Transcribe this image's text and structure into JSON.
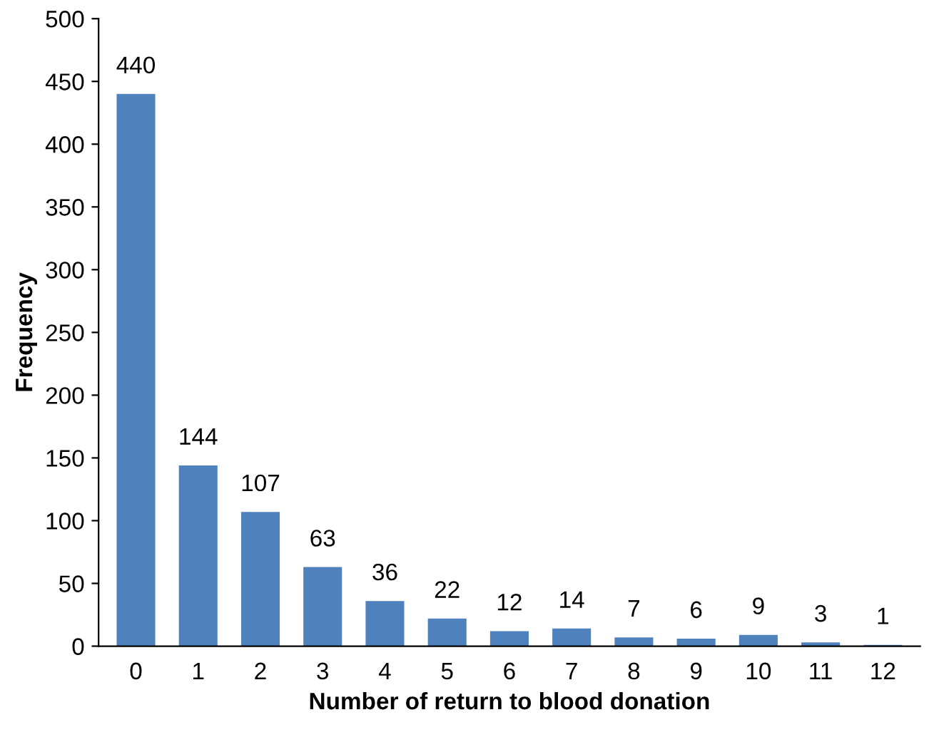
{
  "chart_data": {
    "type": "bar",
    "xlabel": "Number of return to blood donation",
    "ylabel": "Frequency",
    "categories": [
      "0",
      "1",
      "2",
      "3",
      "4",
      "5",
      "6",
      "7",
      "8",
      "9",
      "10",
      "11",
      "12"
    ],
    "values": [
      440,
      144,
      107,
      63,
      36,
      22,
      12,
      14,
      7,
      6,
      9,
      3,
      1
    ],
    "color": "#4f81bd",
    "ylim": [
      0,
      500
    ],
    "yticks": [
      0,
      50,
      100,
      150,
      200,
      250,
      300,
      350,
      400,
      450,
      500
    ],
    "data_labels": true,
    "grid": false,
    "legend": false
  }
}
